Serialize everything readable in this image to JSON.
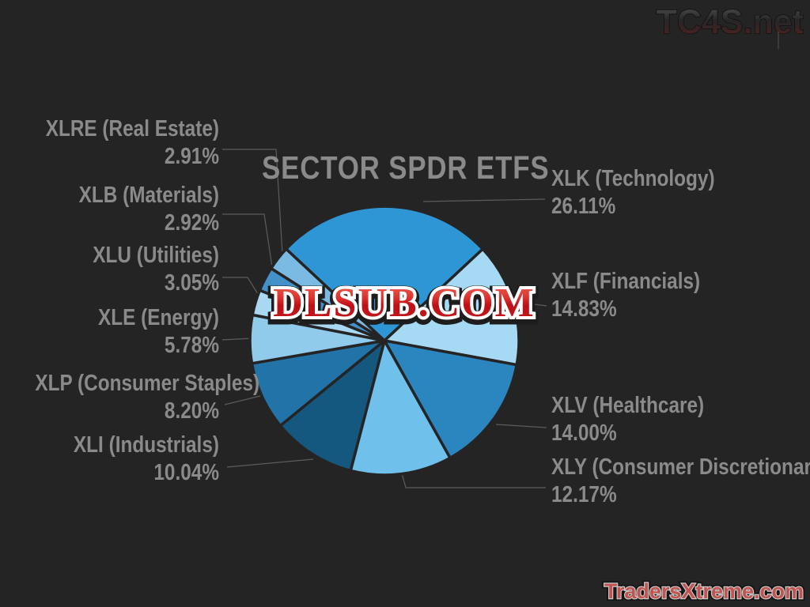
{
  "page": {
    "background": "#242424",
    "text_color": "#8A8A8A"
  },
  "branding": {
    "top_right_watermark": "TC4S.net",
    "center_watermark": "DLSUB.COM",
    "bottom_right_watermark": "TradersXtreme.com"
  },
  "chart_data": {
    "type": "pie",
    "title": "SECTOR SPDR ETFS",
    "start_angle_deg": -47,
    "total": 100,
    "legend_position": "callout-labels",
    "sectors": [
      {
        "ticker": "XLK",
        "label": "XLK (Technology)",
        "value": 26.11,
        "display": "26.11%",
        "color": "#2E96D5",
        "label_side": "right"
      },
      {
        "ticker": "XLF",
        "label": "XLF (Financials)",
        "value": 14.83,
        "display": "14.83%",
        "color": "#A6D9F3",
        "label_side": "right"
      },
      {
        "ticker": "XLV",
        "label": "XLV (Healthcare)",
        "value": 14.0,
        "display": "14.00%",
        "color": "#2B86C0",
        "label_side": "right"
      },
      {
        "ticker": "XLY",
        "label": "XLY (Consumer Discretionary)",
        "value": 12.17,
        "display": "12.17%",
        "color": "#6FC0EA",
        "label_side": "right"
      },
      {
        "ticker": "XLI",
        "label": "XLI (Industrials)",
        "value": 10.04,
        "display": "10.04%",
        "color": "#15587F",
        "label_side": "left"
      },
      {
        "ticker": "XLP",
        "label": "XLP (Consumer Staples)",
        "value": 8.2,
        "display": "8.20%",
        "color": "#2173A8",
        "label_side": "left"
      },
      {
        "ticker": "XLE",
        "label": "XLE (Energy)",
        "value": 5.78,
        "display": "5.78%",
        "color": "#90CBEC",
        "label_side": "left"
      },
      {
        "ticker": "XLU",
        "label": "XLU (Utilities)",
        "value": 3.05,
        "display": "3.05%",
        "color": "#A9D8F2",
        "label_side": "left"
      },
      {
        "ticker": "XLB",
        "label": "XLB (Materials)",
        "value": 2.92,
        "display": "2.92%",
        "color": "#4292C9",
        "label_side": "left"
      },
      {
        "ticker": "XLRE",
        "label": "XLRE (Real Estate)",
        "value": 2.91,
        "display": "2.91%",
        "color": "#7ABAE3",
        "label_side": "left"
      }
    ]
  }
}
